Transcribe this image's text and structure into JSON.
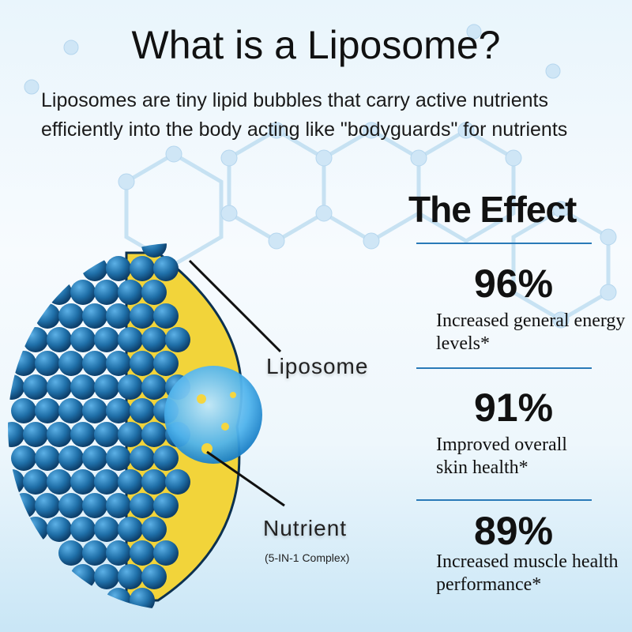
{
  "title": "What is a Liposome?",
  "subtitle": [
    "Liposomes are tiny lipid bubbles that carry active nutrients",
    "efficiently into the body acting like \"bodyguards\" for nutrients"
  ],
  "diagram": {
    "liposome_label": "Liposome",
    "nutrient_label": "Nutrient",
    "nutrient_sublabel": "(5-IN-1 Complex)",
    "colors": {
      "sphere": "#1f6fa8",
      "lipid": "#f2d43a",
      "core": "#4fb3ec"
    }
  },
  "effect": {
    "heading": "The Effect",
    "stats": [
      {
        "value": "96%",
        "description": "Increased general energy levels*"
      },
      {
        "value": "91%",
        "description": "Improved overall skin health*"
      },
      {
        "value": "89%",
        "description": "Increased muscle health performance*"
      }
    ],
    "divider_color": "#2a7ab8"
  }
}
